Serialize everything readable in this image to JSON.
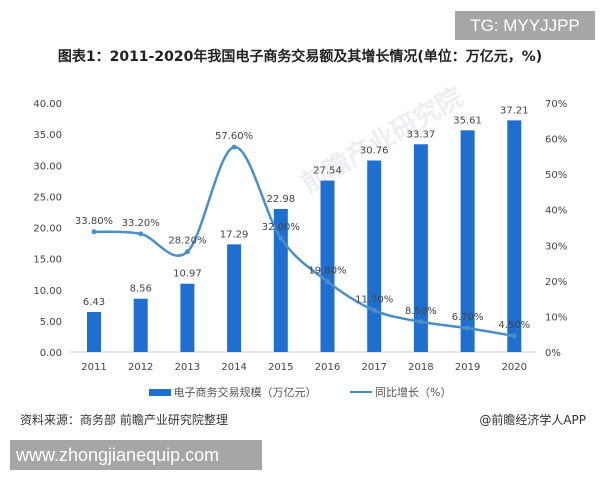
{
  "watermark_top": "TG: MYYJJPP",
  "watermark_bottom": "www.zhongjianequip.com",
  "footer": {
    "source": "资料来源：商务部 前瞻产业研究院整理",
    "credit": "@前瞻经济学人APP"
  },
  "chart_data": {
    "type": "bar+line",
    "title": "图表1：2011-2020年我国电子商务交易额及其增长情况(单位：万亿元，%)",
    "categories": [
      "2011",
      "2012",
      "2013",
      "2014",
      "2015",
      "2016",
      "2017",
      "2018",
      "2019",
      "2020"
    ],
    "series": [
      {
        "name": "电子商务交易规模（万亿元）",
        "type": "bar",
        "axis": "left",
        "color": "#1f6fd1",
        "values": [
          6.43,
          8.56,
          10.97,
          17.29,
          22.98,
          27.54,
          30.76,
          33.37,
          35.61,
          37.21
        ],
        "labels": [
          "6.43",
          "8.56",
          "10.97",
          "17.29",
          "22.98",
          "27.54",
          "30.76",
          "33.37",
          "35.61",
          "37.21"
        ]
      },
      {
        "name": "同比增长（%）",
        "type": "line",
        "axis": "right",
        "color": "#4a8fc8",
        "values": [
          33.8,
          33.2,
          28.2,
          57.6,
          32.0,
          19.8,
          11.7,
          8.5,
          6.7,
          4.5
        ],
        "labels": [
          "33.80%",
          "33.20%",
          "28.20%",
          "57.60%",
          "32.00%",
          "19.80%",
          "11.70%",
          "8.50%",
          "6.70%",
          "4.50%"
        ]
      }
    ],
    "y_left": {
      "range": [
        0,
        40
      ],
      "ticks": [
        "0.00",
        "5.00",
        "10.00",
        "15.00",
        "20.00",
        "25.00",
        "30.00",
        "35.00",
        "40.00"
      ]
    },
    "y_right": {
      "range": [
        0,
        70
      ],
      "ticks": [
        "0%",
        "10%",
        "20%",
        "30%",
        "40%",
        "50%",
        "60%",
        "70%"
      ]
    },
    "grid": false,
    "legend_position": "bottom"
  }
}
